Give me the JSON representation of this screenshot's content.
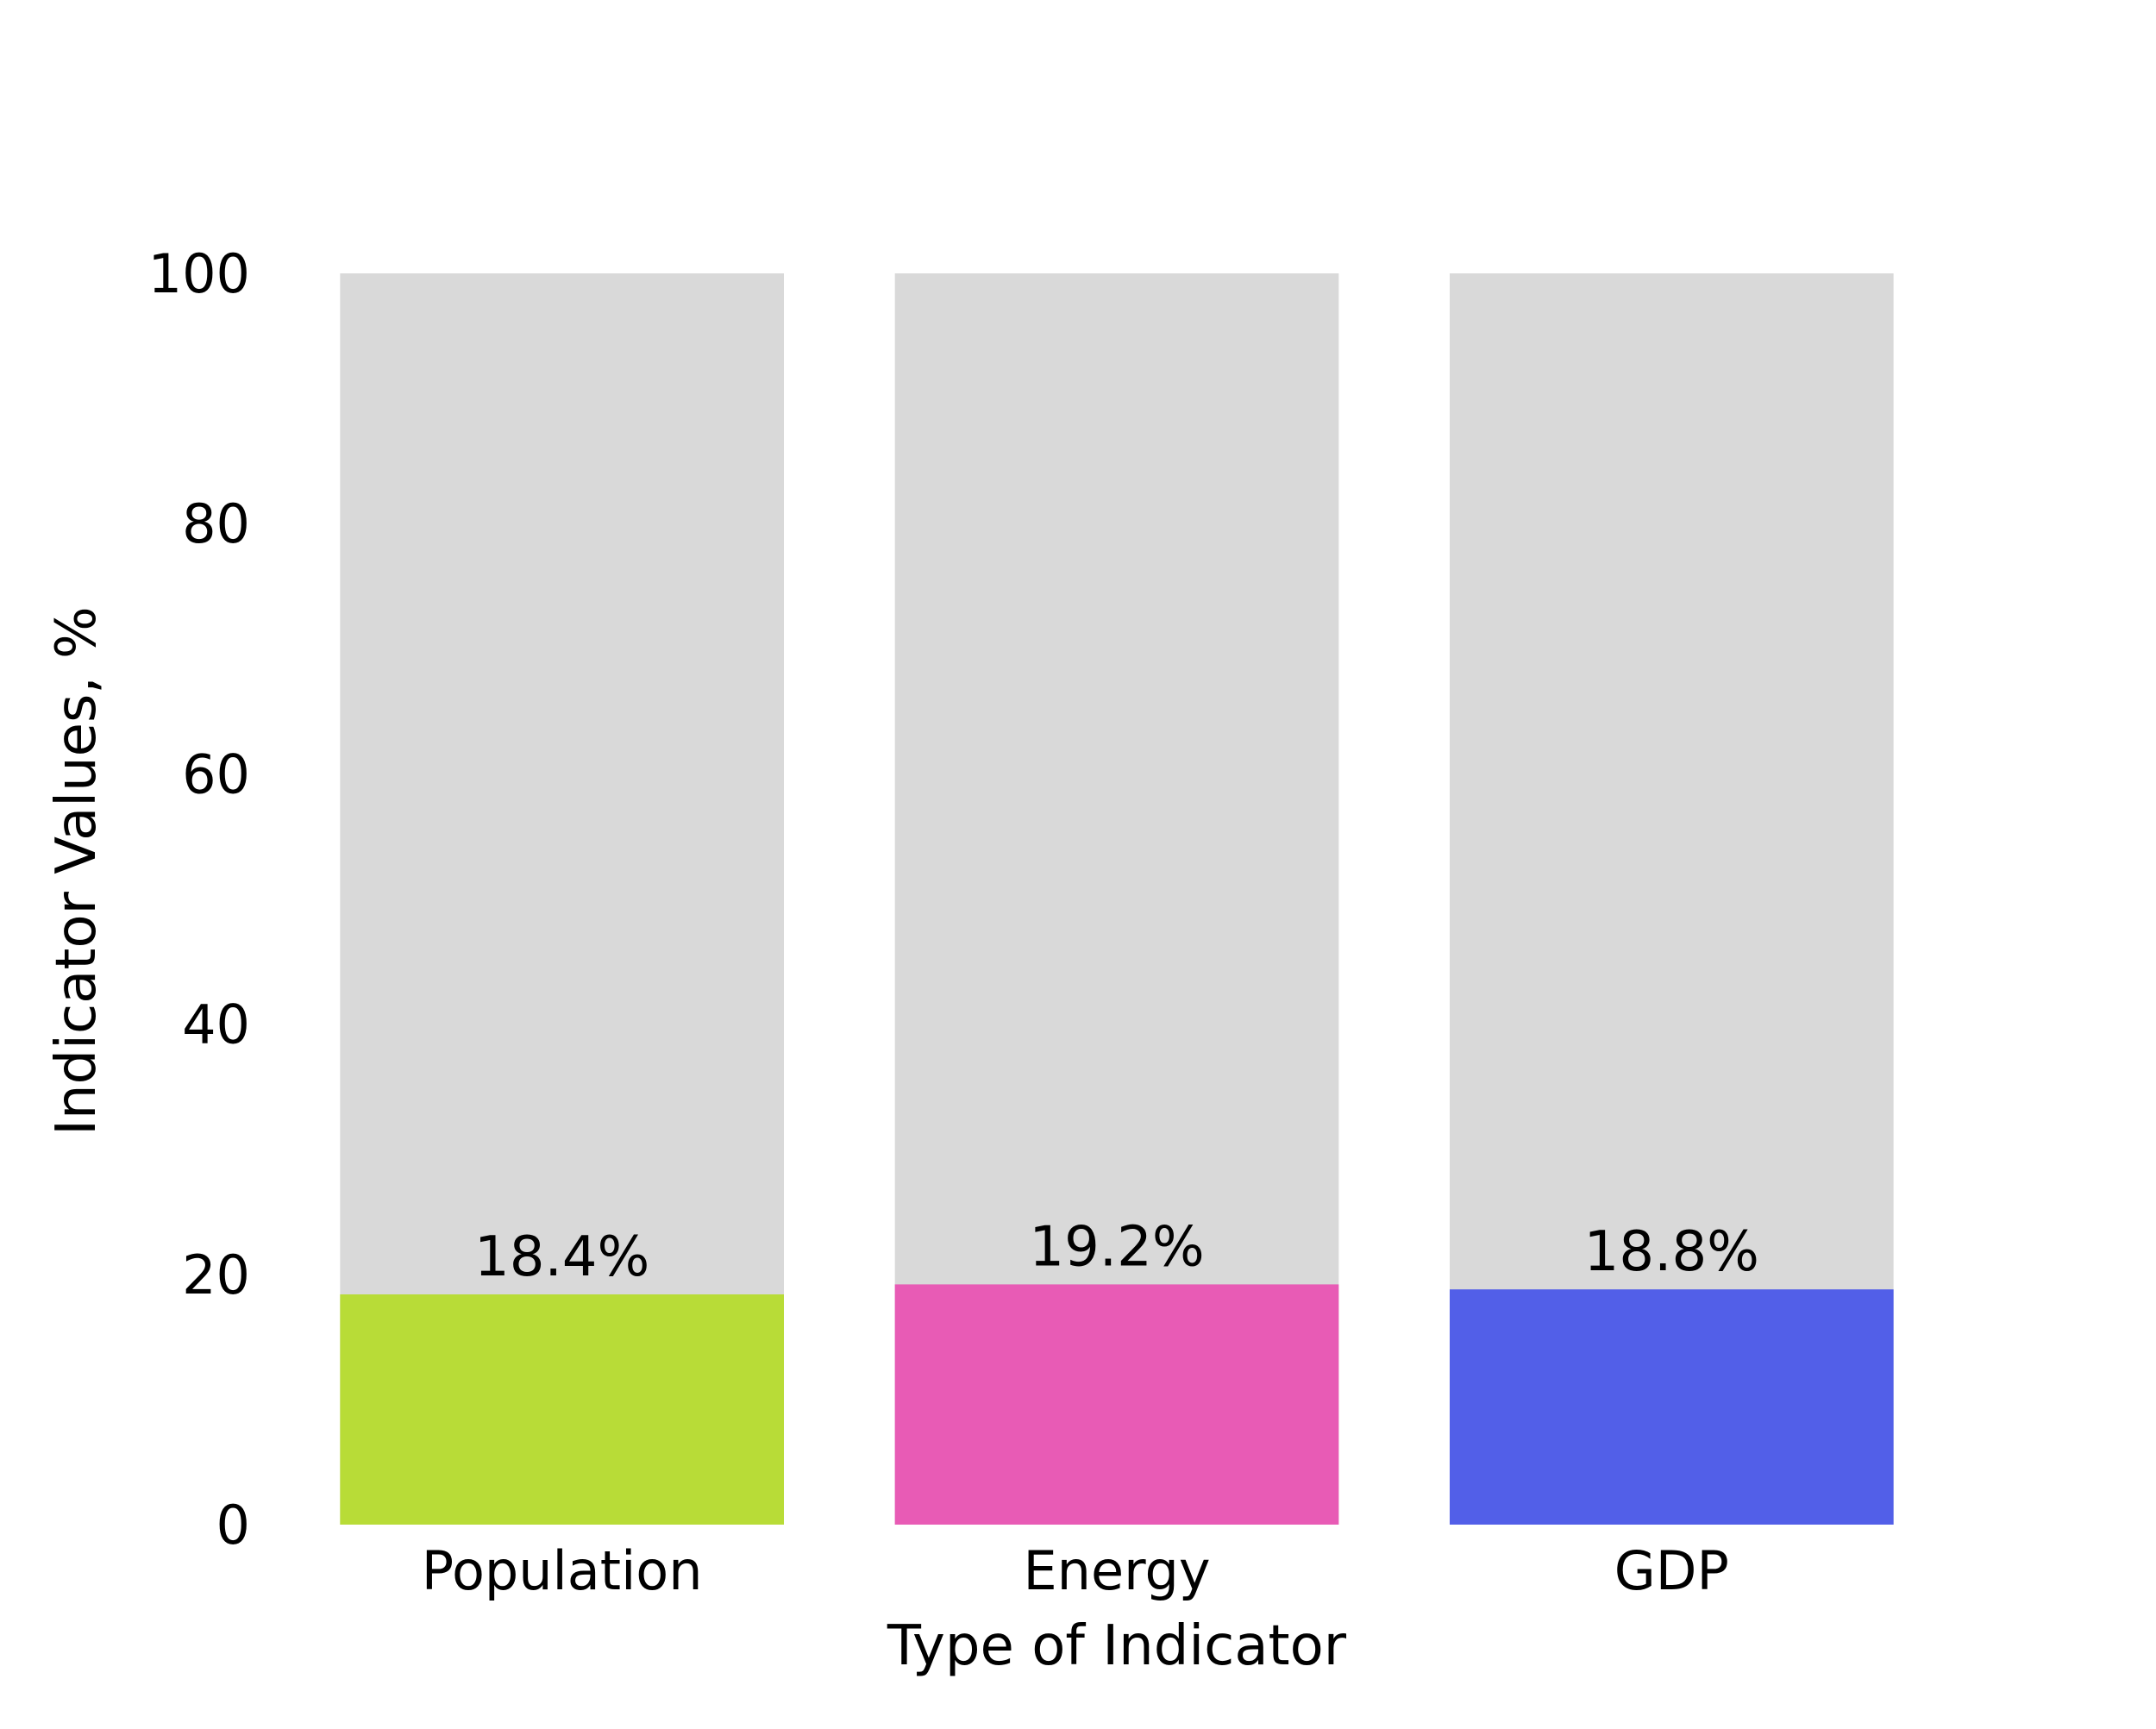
{
  "chart_data": {
    "type": "bar",
    "categories": [
      "Population",
      "Energy",
      "GDP"
    ],
    "values": [
      18.4,
      19.2,
      18.8
    ],
    "value_labels": [
      "18.4%",
      "19.2%",
      "18.8%"
    ],
    "background_values": [
      100,
      100,
      100
    ],
    "colors": [
      "#b8dc37",
      "#e85bb5",
      "#525fe8"
    ],
    "background_color": "#d9d9d9",
    "title": "",
    "xlabel": "Type of Indicator",
    "ylabel": "Indicator Values, %",
    "ylim": [
      0,
      100
    ],
    "yticks": [
      0,
      20,
      40,
      60,
      80,
      100
    ],
    "grid": false,
    "legend": "none"
  }
}
